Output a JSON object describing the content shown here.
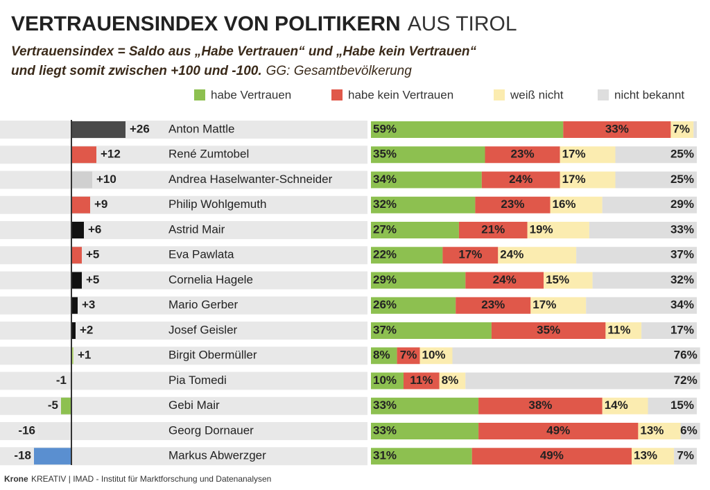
{
  "chart_data": [
    {
      "type": "bar",
      "title": "VERTRAUENSINDEX VON POLITIKERN",
      "title_suffix": "AUS TIROL",
      "subtitle_line1": "Vertrauensindex = Saldo aus „Habe Vertrauen“ und „Habe kein Vertrauen“",
      "subtitle_line2": "und liegt somit zwischen +100 und -100.",
      "subtitle_note": "GG: Gesamtbevölkerung",
      "source_brand": "Krone",
      "source": "KREATIV | IMAD - Institut für Marktforschung und Datenanalysen",
      "categories": [
        "Anton Mattle",
        "René Zumtobel",
        "Andrea Haselwanter-Schneider",
        "Philip Wohlgemuth",
        "Astrid Mair",
        "Eva Pawlata",
        "Cornelia Hagele",
        "Mario Gerber",
        "Josef Geisler",
        "Birgit Obermüller",
        "Pia Tomedi",
        "Gebi Mair",
        "Georg Dornauer",
        "Markus Abwerzger"
      ],
      "values": [
        26,
        12,
        10,
        9,
        6,
        5,
        5,
        3,
        2,
        1,
        -1,
        -5,
        -16,
        -18
      ],
      "value_labels": [
        "+26",
        "+12",
        "+10",
        "+9",
        "+6",
        "+5",
        "+5",
        "+3",
        "+2",
        "+1",
        "-1",
        "-5",
        "-16",
        "-18"
      ],
      "colors": [
        "#4a4a4a",
        "#e0584a",
        "#d0d0d0",
        "#e0584a",
        "#111111",
        "#e0584a",
        "#111111",
        "#111111",
        "#111111",
        "#b9d97a",
        "#e2e2e2",
        "#8dc050",
        "#e6e6e6",
        "#5a8fd0"
      ],
      "xlim": [
        -18,
        26
      ]
    },
    {
      "type": "stacked-bar",
      "xlim": [
        0,
        100
      ],
      "series": [
        {
          "name": "habe Vertrauen",
          "color": "#8dc050",
          "values": [
            59,
            35,
            34,
            32,
            27,
            22,
            29,
            26,
            37,
            8,
            10,
            33,
            33,
            31
          ],
          "value_labels": [
            "59%",
            "35%",
            "34%",
            "32%",
            "27%",
            "22%",
            "29%",
            "26%",
            "37%",
            "8%",
            "10%",
            "33%",
            "33%",
            "31%"
          ]
        },
        {
          "name": "habe kein Vertrauen",
          "color": "#e0584a",
          "values": [
            33,
            23,
            24,
            23,
            21,
            17,
            24,
            23,
            35,
            7,
            11,
            38,
            49,
            49
          ],
          "value_labels": [
            "33%",
            "23%",
            "24%",
            "23%",
            "21%",
            "17%",
            "24%",
            "23%",
            "35%",
            "7%",
            "11%",
            "38%",
            "49%",
            "49%"
          ]
        },
        {
          "name": "weiß nicht",
          "color": "#fbecb0",
          "values": [
            7,
            17,
            17,
            16,
            19,
            24,
            15,
            17,
            11,
            10,
            8,
            14,
            13,
            13
          ],
          "value_labels": [
            "7%",
            "17%",
            "17%",
            "16%",
            "19%",
            "24%",
            "15%",
            "17%",
            "11%",
            "10%",
            "8%",
            "14%",
            "13%",
            "13%"
          ]
        },
        {
          "name": "nicht bekannt",
          "color": "#dedede",
          "values": [
            1,
            25,
            25,
            29,
            33,
            37,
            32,
            34,
            17,
            76,
            72,
            15,
            6,
            7
          ],
          "value_labels": [
            null,
            "25%",
            "25%",
            "29%",
            "33%",
            "37%",
            "32%",
            "34%",
            "17%",
            "76%",
            "72%",
            "15%",
            "6%",
            "7%"
          ]
        }
      ]
    }
  ]
}
